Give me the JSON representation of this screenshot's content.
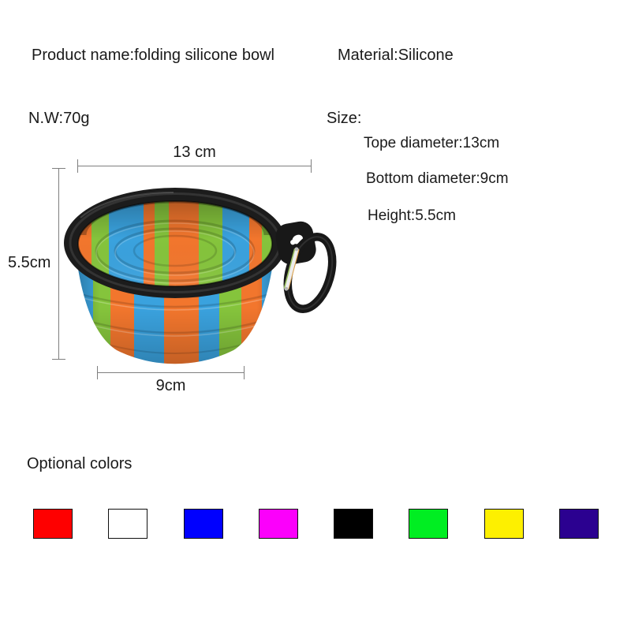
{
  "header": {
    "product_name": "Product name:folding silicone bowl",
    "material": "Material:Silicone",
    "net_weight": "N.W:70g"
  },
  "size": {
    "label": "Size:",
    "lines": [
      "Tope diameter:13cm",
      "Bottom diameter:9cm",
      "Height:5.5cm"
    ]
  },
  "dimension_annotations": {
    "top_diameter": "13 cm",
    "height": "5.5cm",
    "bottom_diameter": "9cm"
  },
  "optional_colors": {
    "label": "Optional colors",
    "swatches": [
      {
        "name": "red",
        "hex": "#fe0000"
      },
      {
        "name": "white",
        "hex": "#ffffff"
      },
      {
        "name": "blue",
        "hex": "#0000fe"
      },
      {
        "name": "magenta",
        "hex": "#fb00fb"
      },
      {
        "name": "black",
        "hex": "#000000"
      },
      {
        "name": "green",
        "hex": "#00ee22"
      },
      {
        "name": "yellow",
        "hex": "#fdf000"
      },
      {
        "name": "dark-purple",
        "hex": "#2b0190"
      }
    ]
  },
  "bowl": {
    "description": "collapsible camouflage silicone bowl with black rim and black carabiner clip",
    "colors": {
      "rim": "#1c1c1c",
      "orange": "#f2762d",
      "blue": "#3aa2de",
      "green": "#85c43c",
      "carabiner": "#181818",
      "gate": "#ededed"
    }
  }
}
